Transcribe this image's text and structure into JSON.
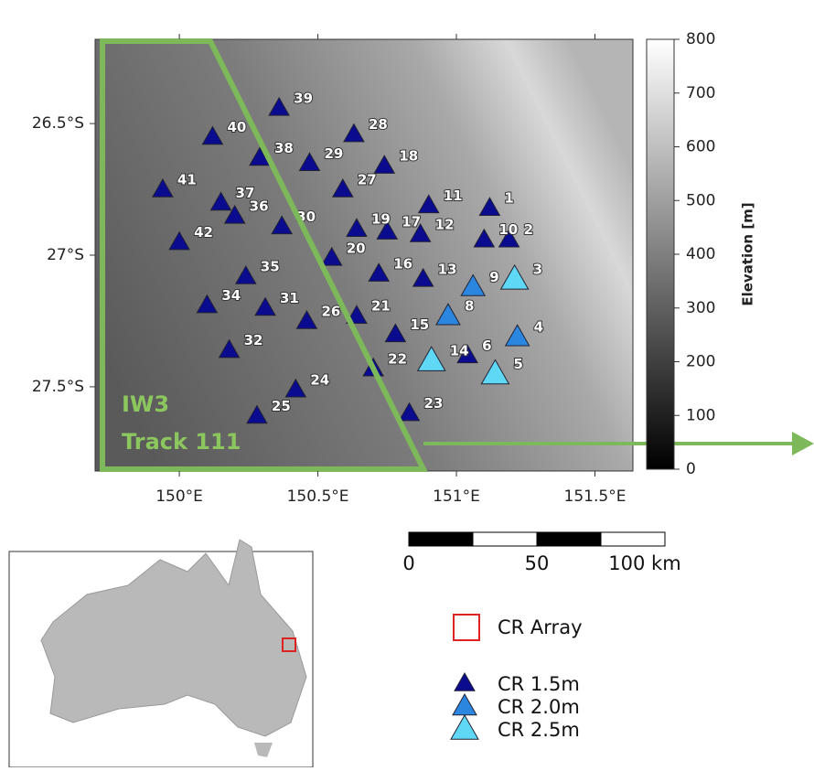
{
  "map": {
    "xlim": [
      149.696,
      151.637
    ],
    "ylim": [
      -27.82,
      -26.18
    ],
    "xticks": [
      {
        "value": 150,
        "label": "150°E"
      },
      {
        "value": 150.5,
        "label": "150.5°E"
      },
      {
        "value": 151,
        "label": "151°E"
      },
      {
        "value": 151.5,
        "label": "151.5°E"
      }
    ],
    "yticks": [
      {
        "value": -26.5,
        "label": "26.5°S"
      },
      {
        "value": -27,
        "label": "27°S"
      },
      {
        "value": -27.5,
        "label": "27.5°S"
      }
    ],
    "track": {
      "mode": "IW3",
      "name": "Track 111"
    },
    "colorbar": {
      "title": "Elevation [m]",
      "lim": [
        0,
        800
      ],
      "ticks": [
        0,
        100,
        200,
        300,
        400,
        500,
        600,
        700,
        800
      ]
    },
    "scalebar": {
      "lim": [
        0,
        100
      ],
      "ticks": [
        0,
        50,
        {
          "value": 100,
          "label": "100 km"
        }
      ]
    },
    "legend": {
      "array": "CR Array",
      "classes": [
        {
          "label": "CR 1.5m",
          "color": "#0b0b8f",
          "stations": [
            {
              "label": "1",
              "lon": 151.12,
              "lat": -26.82
            },
            {
              "label": "2",
              "lon": 151.19,
              "lat": -26.94
            },
            {
              "label": "6",
              "lon": 151.04,
              "lat": -27.38
            },
            {
              "label": "10",
              "lon": 151.1,
              "lat": -26.94
            },
            {
              "label": "11",
              "lon": 150.9,
              "lat": -26.81
            },
            {
              "label": "12",
              "lon": 150.87,
              "lat": -26.92
            },
            {
              "label": "13",
              "lon": 150.88,
              "lat": -27.09
            },
            {
              "label": "15",
              "lon": 150.78,
              "lat": -27.3
            },
            {
              "label": "16",
              "lon": 150.72,
              "lat": -27.07
            },
            {
              "label": "17",
              "lon": 150.75,
              "lat": -26.91
            },
            {
              "label": "18",
              "lon": 150.74,
              "lat": -26.66
            },
            {
              "label": "19",
              "lon": 150.64,
              "lat": -26.9
            },
            {
              "label": "20",
              "lon": 150.55,
              "lat": -27.01
            },
            {
              "label": "21",
              "lon": 150.64,
              "lat": -27.23
            },
            {
              "label": "22",
              "lon": 150.7,
              "lat": -27.43
            },
            {
              "label": "23",
              "lon": 150.83,
              "lat": -27.6
            },
            {
              "label": "24",
              "lon": 150.42,
              "lat": -27.51
            },
            {
              "label": "25",
              "lon": 150.28,
              "lat": -27.61
            },
            {
              "label": "26",
              "lon": 150.46,
              "lat": -27.25
            },
            {
              "label": "27",
              "lon": 150.59,
              "lat": -26.75
            },
            {
              "label": "28",
              "lon": 150.63,
              "lat": -26.54
            },
            {
              "label": "29",
              "lon": 150.47,
              "lat": -26.65
            },
            {
              "label": "30",
              "lon": 150.37,
              "lat": -26.89
            },
            {
              "label": "31",
              "lon": 150.31,
              "lat": -27.2
            },
            {
              "label": "32",
              "lon": 150.18,
              "lat": -27.36
            },
            {
              "label": "34",
              "lon": 150.1,
              "lat": -27.19
            },
            {
              "label": "35",
              "lon": 150.24,
              "lat": -27.08
            },
            {
              "label": "36",
              "lon": 150.2,
              "lat": -26.85
            },
            {
              "label": "37",
              "lon": 150.15,
              "lat": -26.8
            },
            {
              "label": "38",
              "lon": 150.29,
              "lat": -26.63
            },
            {
              "label": "39",
              "lon": 150.36,
              "lat": -26.44
            },
            {
              "label": "40",
              "lon": 150.12,
              "lat": -26.55
            },
            {
              "label": "41",
              "lon": 149.94,
              "lat": -26.75
            },
            {
              "label": "42",
              "lon": 150.0,
              "lat": -26.95
            }
          ]
        },
        {
          "label": "CR 2.0m",
          "color": "#2b86e0",
          "stations": [
            {
              "label": "4",
              "lon": 151.22,
              "lat": -27.31
            },
            {
              "label": "8",
              "lon": 150.97,
              "lat": -27.23
            },
            {
              "label": "9",
              "lon": 151.06,
              "lat": -27.12
            }
          ]
        },
        {
          "label": "CR 2.5m",
          "color": "#5fd8f5",
          "stations": [
            {
              "label": "3",
              "lon": 151.21,
              "lat": -27.09
            },
            {
              "label": "5",
              "lon": 151.14,
              "lat": -27.45
            },
            {
              "label": "14",
              "lon": 150.91,
              "lat": -27.4
            }
          ]
        }
      ]
    }
  }
}
